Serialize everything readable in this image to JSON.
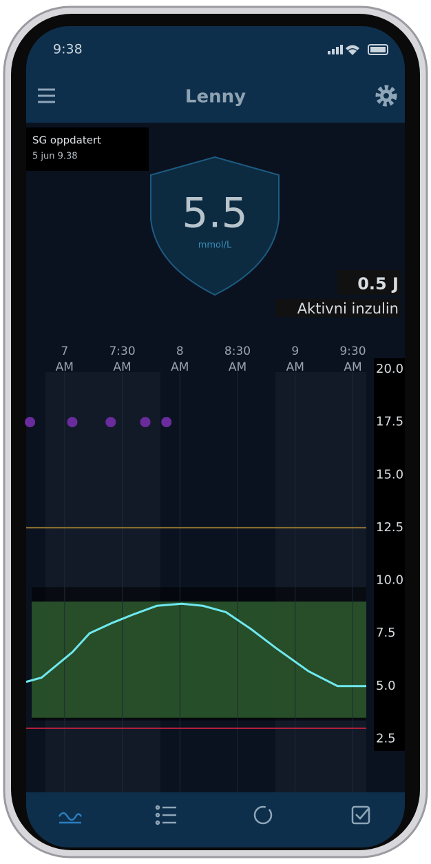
{
  "status_bar": {
    "time": "9:38"
  },
  "header": {
    "title": "Lenny"
  },
  "sg_update": {
    "label": "SG oppdatert",
    "date": "5 jun 9.38"
  },
  "current_sg": {
    "value": "5.5",
    "unit": "mmol/L"
  },
  "active_insulin": {
    "value": "0.5 J",
    "label": "Aktivni inzulin"
  },
  "chart_data": {
    "type": "line",
    "xlim": [
      400,
      577
    ],
    "xticks": [
      {
        "value": 420,
        "label": "7 AM"
      },
      {
        "value": 450,
        "label": "7:30 AM"
      },
      {
        "value": 480,
        "label": "8 AM"
      },
      {
        "value": 510,
        "label": "8:30 AM"
      },
      {
        "value": 540,
        "label": "9 AM"
      },
      {
        "value": 570,
        "label": "9:30 AM"
      }
    ],
    "ylim": [
      0,
      20
    ],
    "yticks": [
      {
        "value": 20,
        "label": "20.0"
      },
      {
        "value": 17.5,
        "label": "17.5"
      },
      {
        "value": 15,
        "label": "15.0"
      },
      {
        "value": 12.5,
        "label": "12.5"
      },
      {
        "value": 10,
        "label": "10.0"
      },
      {
        "value": 7.5,
        "label": "7.5"
      },
      {
        "value": 5,
        "label": "5.0"
      },
      {
        "value": 2.5,
        "label": "2.5"
      }
    ],
    "target_range": [
      3.5,
      9.0
    ],
    "high_limit": 12.5,
    "low_limit": 3.0,
    "series": [
      {
        "color": "#6fe8f0",
        "x": [
          400,
          408,
          424,
          433,
          445,
          456,
          468,
          481,
          492,
          504,
          517,
          530,
          547,
          562,
          569,
          577
        ],
        "values": [
          5.2,
          5.4,
          6.6,
          7.5,
          8.0,
          8.4,
          8.8,
          8.9,
          8.8,
          8.5,
          7.7,
          6.8,
          5.7,
          5.0,
          5.0,
          5.0
        ]
      }
    ],
    "events": {
      "color": "#6a2c9c",
      "x": [
        402,
        424,
        444,
        462,
        473
      ],
      "values": [
        17.5,
        17.5,
        17.5,
        17.5,
        17.5
      ]
    }
  }
}
